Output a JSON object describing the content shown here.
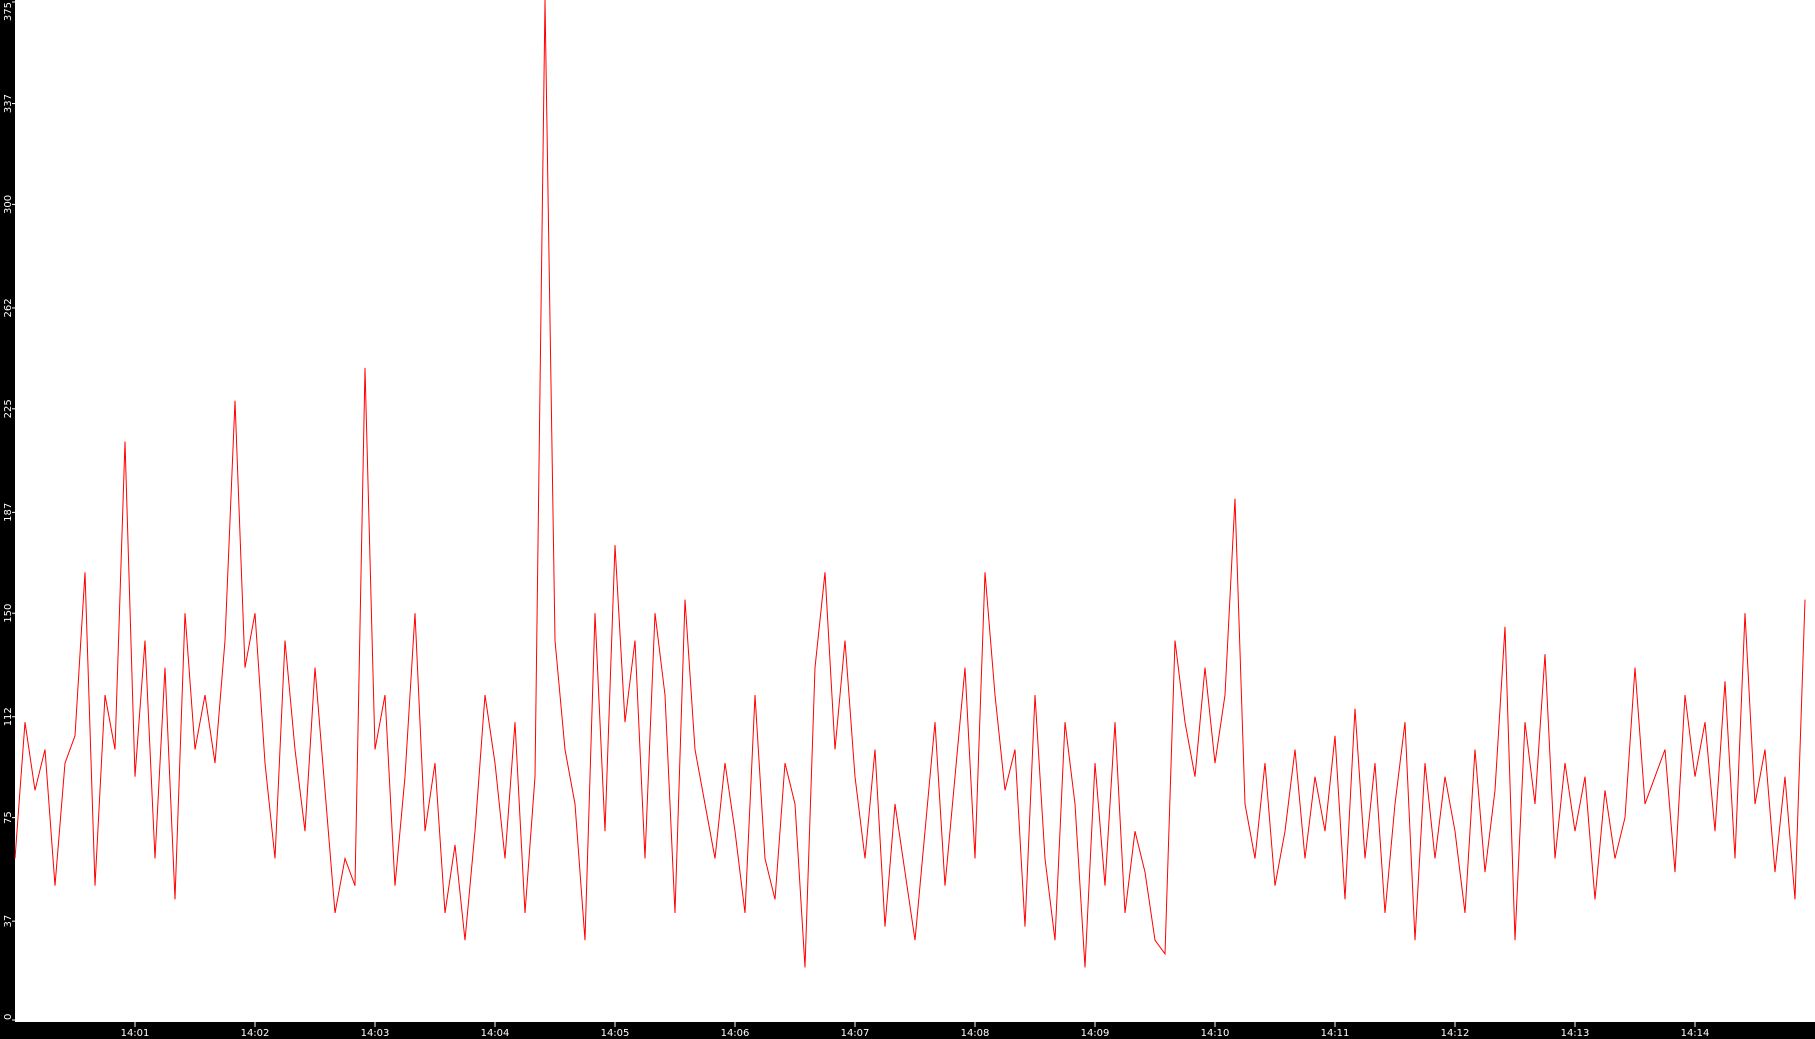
{
  "chart_data": {
    "type": "line",
    "title": "",
    "xlabel": "",
    "ylabel": "",
    "ylim": [
      0,
      375
    ],
    "xlim": [
      "14:00:00",
      "14:15:00"
    ],
    "grid": false,
    "background": "#ffffff",
    "axis_background": "#000000",
    "line_color": "#ff0000",
    "y_ticks": [
      "0",
      "37",
      "75",
      "112",
      "150",
      "187",
      "225",
      "262",
      "300",
      "337",
      "375"
    ],
    "x_ticks": [
      "14:01",
      "14:02",
      "14:03",
      "14:04",
      "14:05",
      "14:06",
      "14:07",
      "14:08",
      "14:09",
      "14:10",
      "14:11",
      "14:12",
      "14:13",
      "14:14"
    ],
    "sample_interval_seconds": 5,
    "series": [
      {
        "values": [
          60,
          110,
          85,
          100,
          50,
          95,
          105,
          165,
          50,
          120,
          100,
          213,
          90,
          140,
          60,
          130,
          45,
          150,
          100,
          120,
          95,
          140,
          228,
          130,
          150,
          95,
          60,
          140,
          100,
          70,
          130,
          85,
          40,
          60,
          50,
          240,
          100,
          120,
          50,
          90,
          150,
          70,
          95,
          40,
          65,
          30,
          70,
          120,
          95,
          60,
          110,
          40,
          90,
          375,
          140,
          100,
          80,
          30,
          150,
          70,
          175,
          110,
          140,
          60,
          150,
          120,
          40,
          155,
          100,
          80,
          60,
          95,
          70,
          40,
          120,
          60,
          45,
          95,
          80,
          20,
          130,
          165,
          100,
          140,
          90,
          60,
          100,
          35,
          80,
          55,
          30,
          70,
          110,
          50,
          90,
          130,
          60,
          165,
          120,
          85,
          100,
          35,
          120,
          60,
          30,
          110,
          80,
          20,
          95,
          50,
          110,
          40,
          70,
          55,
          30,
          25,
          140,
          110,
          90,
          130,
          95,
          120,
          192,
          80,
          60,
          95,
          50,
          70,
          100,
          60,
          90,
          70,
          105,
          45,
          115,
          60,
          95,
          40,
          80,
          110,
          30,
          95,
          60,
          90,
          70,
          40,
          100,
          55,
          85,
          145,
          30,
          110,
          80,
          135,
          60,
          95,
          70,
          90,
          45,
          85,
          60,
          75,
          130,
          80,
          90,
          100,
          55,
          120,
          90,
          110,
          70,
          125,
          60,
          150,
          80,
          100,
          55,
          90,
          45,
          155
        ]
      }
    ]
  }
}
